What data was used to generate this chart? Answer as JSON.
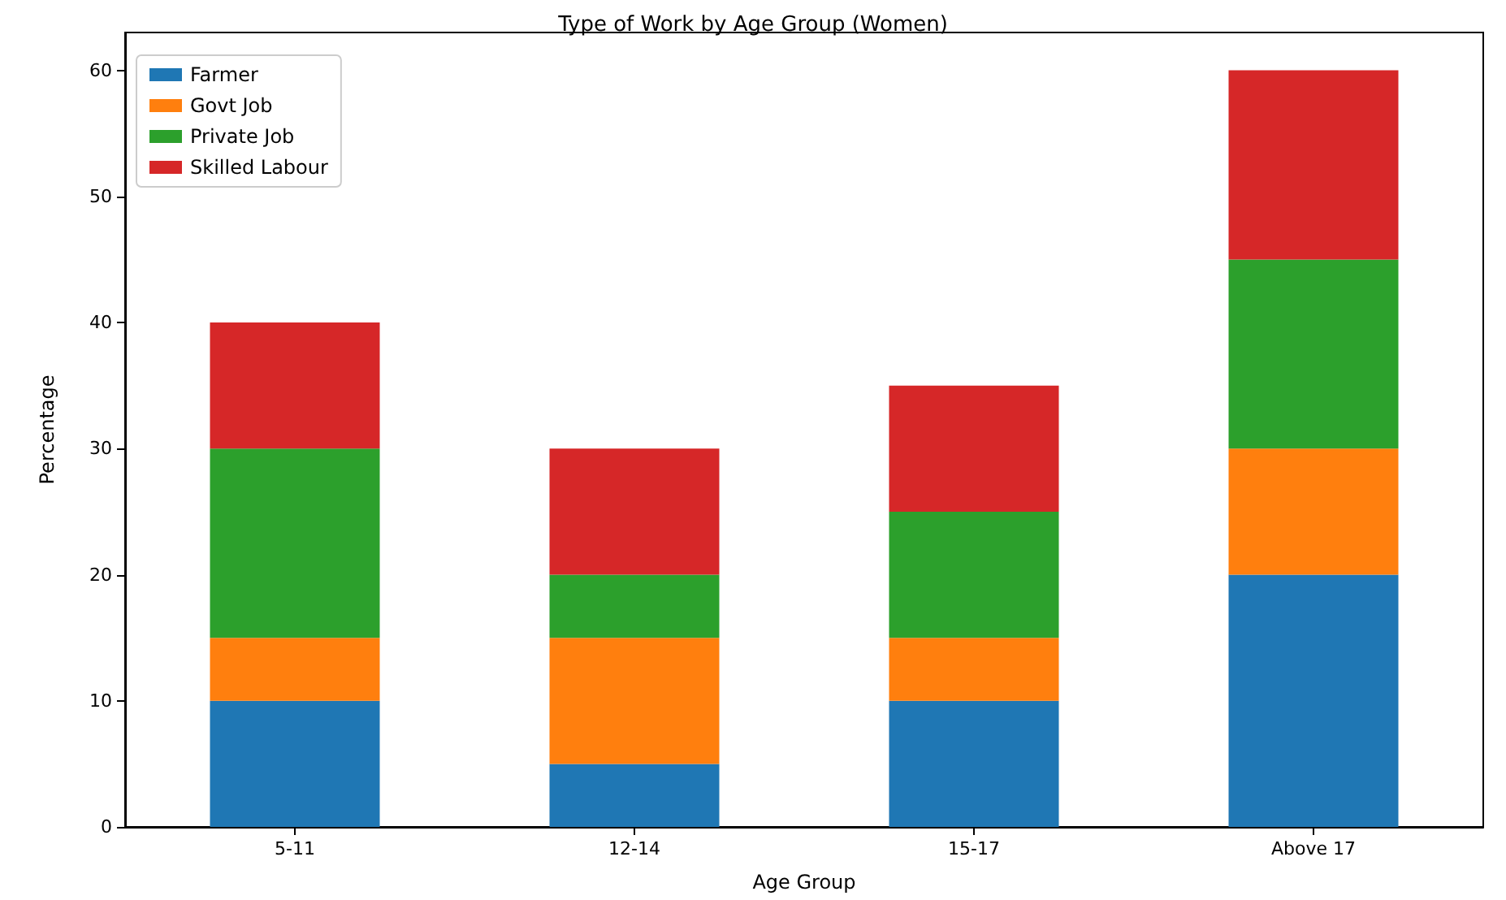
{
  "chart_data": {
    "type": "bar",
    "title": "Type of Work by Age Group (Women)",
    "xlabel": "Age Group",
    "ylabel": "Percentage",
    "categories": [
      "5-11",
      "12-14",
      "15-17",
      "Above 17"
    ],
    "series": [
      {
        "name": "Farmer",
        "color": "#1f77b4",
        "values": [
          10,
          5,
          10,
          20
        ]
      },
      {
        "name": "Govt Job",
        "color": "#ff7f0e",
        "values": [
          5,
          10,
          5,
          10
        ]
      },
      {
        "name": "Private Job",
        "color": "#2ca02c",
        "values": [
          15,
          5,
          10,
          15
        ]
      },
      {
        "name": "Skilled Labour",
        "color": "#d62728",
        "values": [
          10,
          10,
          10,
          15
        ]
      }
    ],
    "stacked": true,
    "ylim": [
      0,
      63
    ],
    "yticks": [
      0,
      10,
      20,
      30,
      40,
      50,
      60
    ],
    "grid": false,
    "legend": "top left"
  }
}
